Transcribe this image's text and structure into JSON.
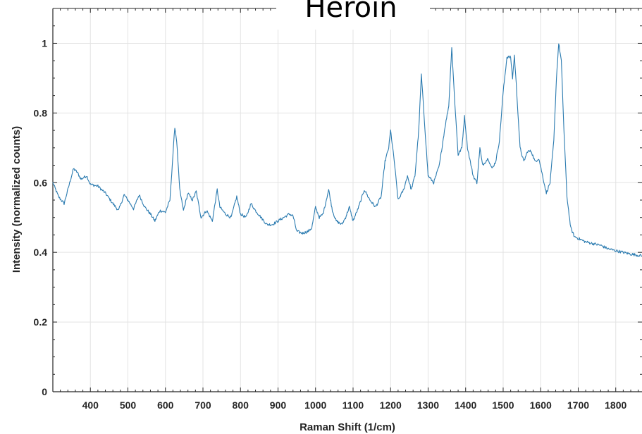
{
  "chart_data": {
    "type": "line",
    "title": "Heroin",
    "xlabel": "Raman Shift (1/cm)",
    "ylabel": "Intensity (normalized counts)",
    "xlim": [
      300,
      1870
    ],
    "ylim": [
      0,
      1.1
    ],
    "grid": true,
    "x_ticks": [
      "400",
      "500",
      "600",
      "700",
      "800",
      "900",
      "1000",
      "1100",
      "1200",
      "1300",
      "1400",
      "1500",
      "1600",
      "1700",
      "1800"
    ],
    "y_ticks": [
      "0",
      "0.2",
      "0.4",
      "0.6",
      "0.8",
      "1"
    ],
    "colors": {
      "line": "#2b7bb0",
      "grid": "#e3e3e3",
      "axis": "#262626"
    },
    "series": [
      {
        "values": [
          [
            300,
            0.6
          ],
          [
            315,
            0.56
          ],
          [
            330,
            0.54
          ],
          [
            345,
            0.6
          ],
          [
            355,
            0.64
          ],
          [
            365,
            0.63
          ],
          [
            375,
            0.61
          ],
          [
            390,
            0.62
          ],
          [
            400,
            0.595
          ],
          [
            420,
            0.59
          ],
          [
            440,
            0.57
          ],
          [
            460,
            0.54
          ],
          [
            475,
            0.52
          ],
          [
            490,
            0.565
          ],
          [
            500,
            0.55
          ],
          [
            515,
            0.525
          ],
          [
            530,
            0.565
          ],
          [
            545,
            0.53
          ],
          [
            560,
            0.51
          ],
          [
            572,
            0.49
          ],
          [
            585,
            0.52
          ],
          [
            600,
            0.515
          ],
          [
            612,
            0.55
          ],
          [
            620,
            0.68
          ],
          [
            625,
            0.76
          ],
          [
            630,
            0.72
          ],
          [
            638,
            0.58
          ],
          [
            648,
            0.52
          ],
          [
            660,
            0.57
          ],
          [
            672,
            0.55
          ],
          [
            682,
            0.575
          ],
          [
            695,
            0.5
          ],
          [
            710,
            0.52
          ],
          [
            725,
            0.49
          ],
          [
            738,
            0.58
          ],
          [
            745,
            0.53
          ],
          [
            760,
            0.51
          ],
          [
            775,
            0.5
          ],
          [
            790,
            0.56
          ],
          [
            800,
            0.51
          ],
          [
            815,
            0.5
          ],
          [
            828,
            0.54
          ],
          [
            840,
            0.52
          ],
          [
            855,
            0.5
          ],
          [
            870,
            0.48
          ],
          [
            885,
            0.48
          ],
          [
            900,
            0.49
          ],
          [
            915,
            0.5
          ],
          [
            930,
            0.51
          ],
          [
            940,
            0.505
          ],
          [
            950,
            0.46
          ],
          [
            965,
            0.455
          ],
          [
            980,
            0.46
          ],
          [
            990,
            0.47
          ],
          [
            1000,
            0.53
          ],
          [
            1010,
            0.5
          ],
          [
            1020,
            0.51
          ],
          [
            1035,
            0.58
          ],
          [
            1045,
            0.52
          ],
          [
            1055,
            0.49
          ],
          [
            1070,
            0.48
          ],
          [
            1080,
            0.5
          ],
          [
            1090,
            0.53
          ],
          [
            1100,
            0.49
          ],
          [
            1115,
            0.53
          ],
          [
            1130,
            0.58
          ],
          [
            1145,
            0.55
          ],
          [
            1160,
            0.53
          ],
          [
            1175,
            0.56
          ],
          [
            1185,
            0.66
          ],
          [
            1195,
            0.7
          ],
          [
            1200,
            0.75
          ],
          [
            1210,
            0.66
          ],
          [
            1220,
            0.55
          ],
          [
            1235,
            0.58
          ],
          [
            1245,
            0.62
          ],
          [
            1255,
            0.58
          ],
          [
            1265,
            0.62
          ],
          [
            1275,
            0.75
          ],
          [
            1282,
            0.91
          ],
          [
            1290,
            0.78
          ],
          [
            1300,
            0.62
          ],
          [
            1315,
            0.6
          ],
          [
            1330,
            0.65
          ],
          [
            1345,
            0.76
          ],
          [
            1355,
            0.82
          ],
          [
            1363,
            0.99
          ],
          [
            1370,
            0.85
          ],
          [
            1380,
            0.68
          ],
          [
            1390,
            0.7
          ],
          [
            1397,
            0.79
          ],
          [
            1405,
            0.7
          ],
          [
            1420,
            0.62
          ],
          [
            1430,
            0.6
          ],
          [
            1438,
            0.7
          ],
          [
            1445,
            0.65
          ],
          [
            1460,
            0.67
          ],
          [
            1470,
            0.64
          ],
          [
            1480,
            0.66
          ],
          [
            1490,
            0.72
          ],
          [
            1500,
            0.86
          ],
          [
            1510,
            0.96
          ],
          [
            1520,
            0.96
          ],
          [
            1525,
            0.9
          ],
          [
            1530,
            0.965
          ],
          [
            1535,
            0.88
          ],
          [
            1545,
            0.7
          ],
          [
            1555,
            0.66
          ],
          [
            1565,
            0.69
          ],
          [
            1575,
            0.69
          ],
          [
            1585,
            0.66
          ],
          [
            1595,
            0.67
          ],
          [
            1605,
            0.62
          ],
          [
            1615,
            0.57
          ],
          [
            1625,
            0.6
          ],
          [
            1635,
            0.72
          ],
          [
            1642,
            0.9
          ],
          [
            1648,
            1.0
          ],
          [
            1655,
            0.95
          ],
          [
            1662,
            0.75
          ],
          [
            1670,
            0.56
          ],
          [
            1680,
            0.47
          ],
          [
            1690,
            0.445
          ],
          [
            1700,
            0.44
          ],
          [
            1720,
            0.43
          ],
          [
            1740,
            0.425
          ],
          [
            1760,
            0.42
          ],
          [
            1780,
            0.41
          ],
          [
            1800,
            0.405
          ],
          [
            1820,
            0.4
          ],
          [
            1840,
            0.395
          ],
          [
            1870,
            0.39
          ]
        ]
      }
    ]
  }
}
